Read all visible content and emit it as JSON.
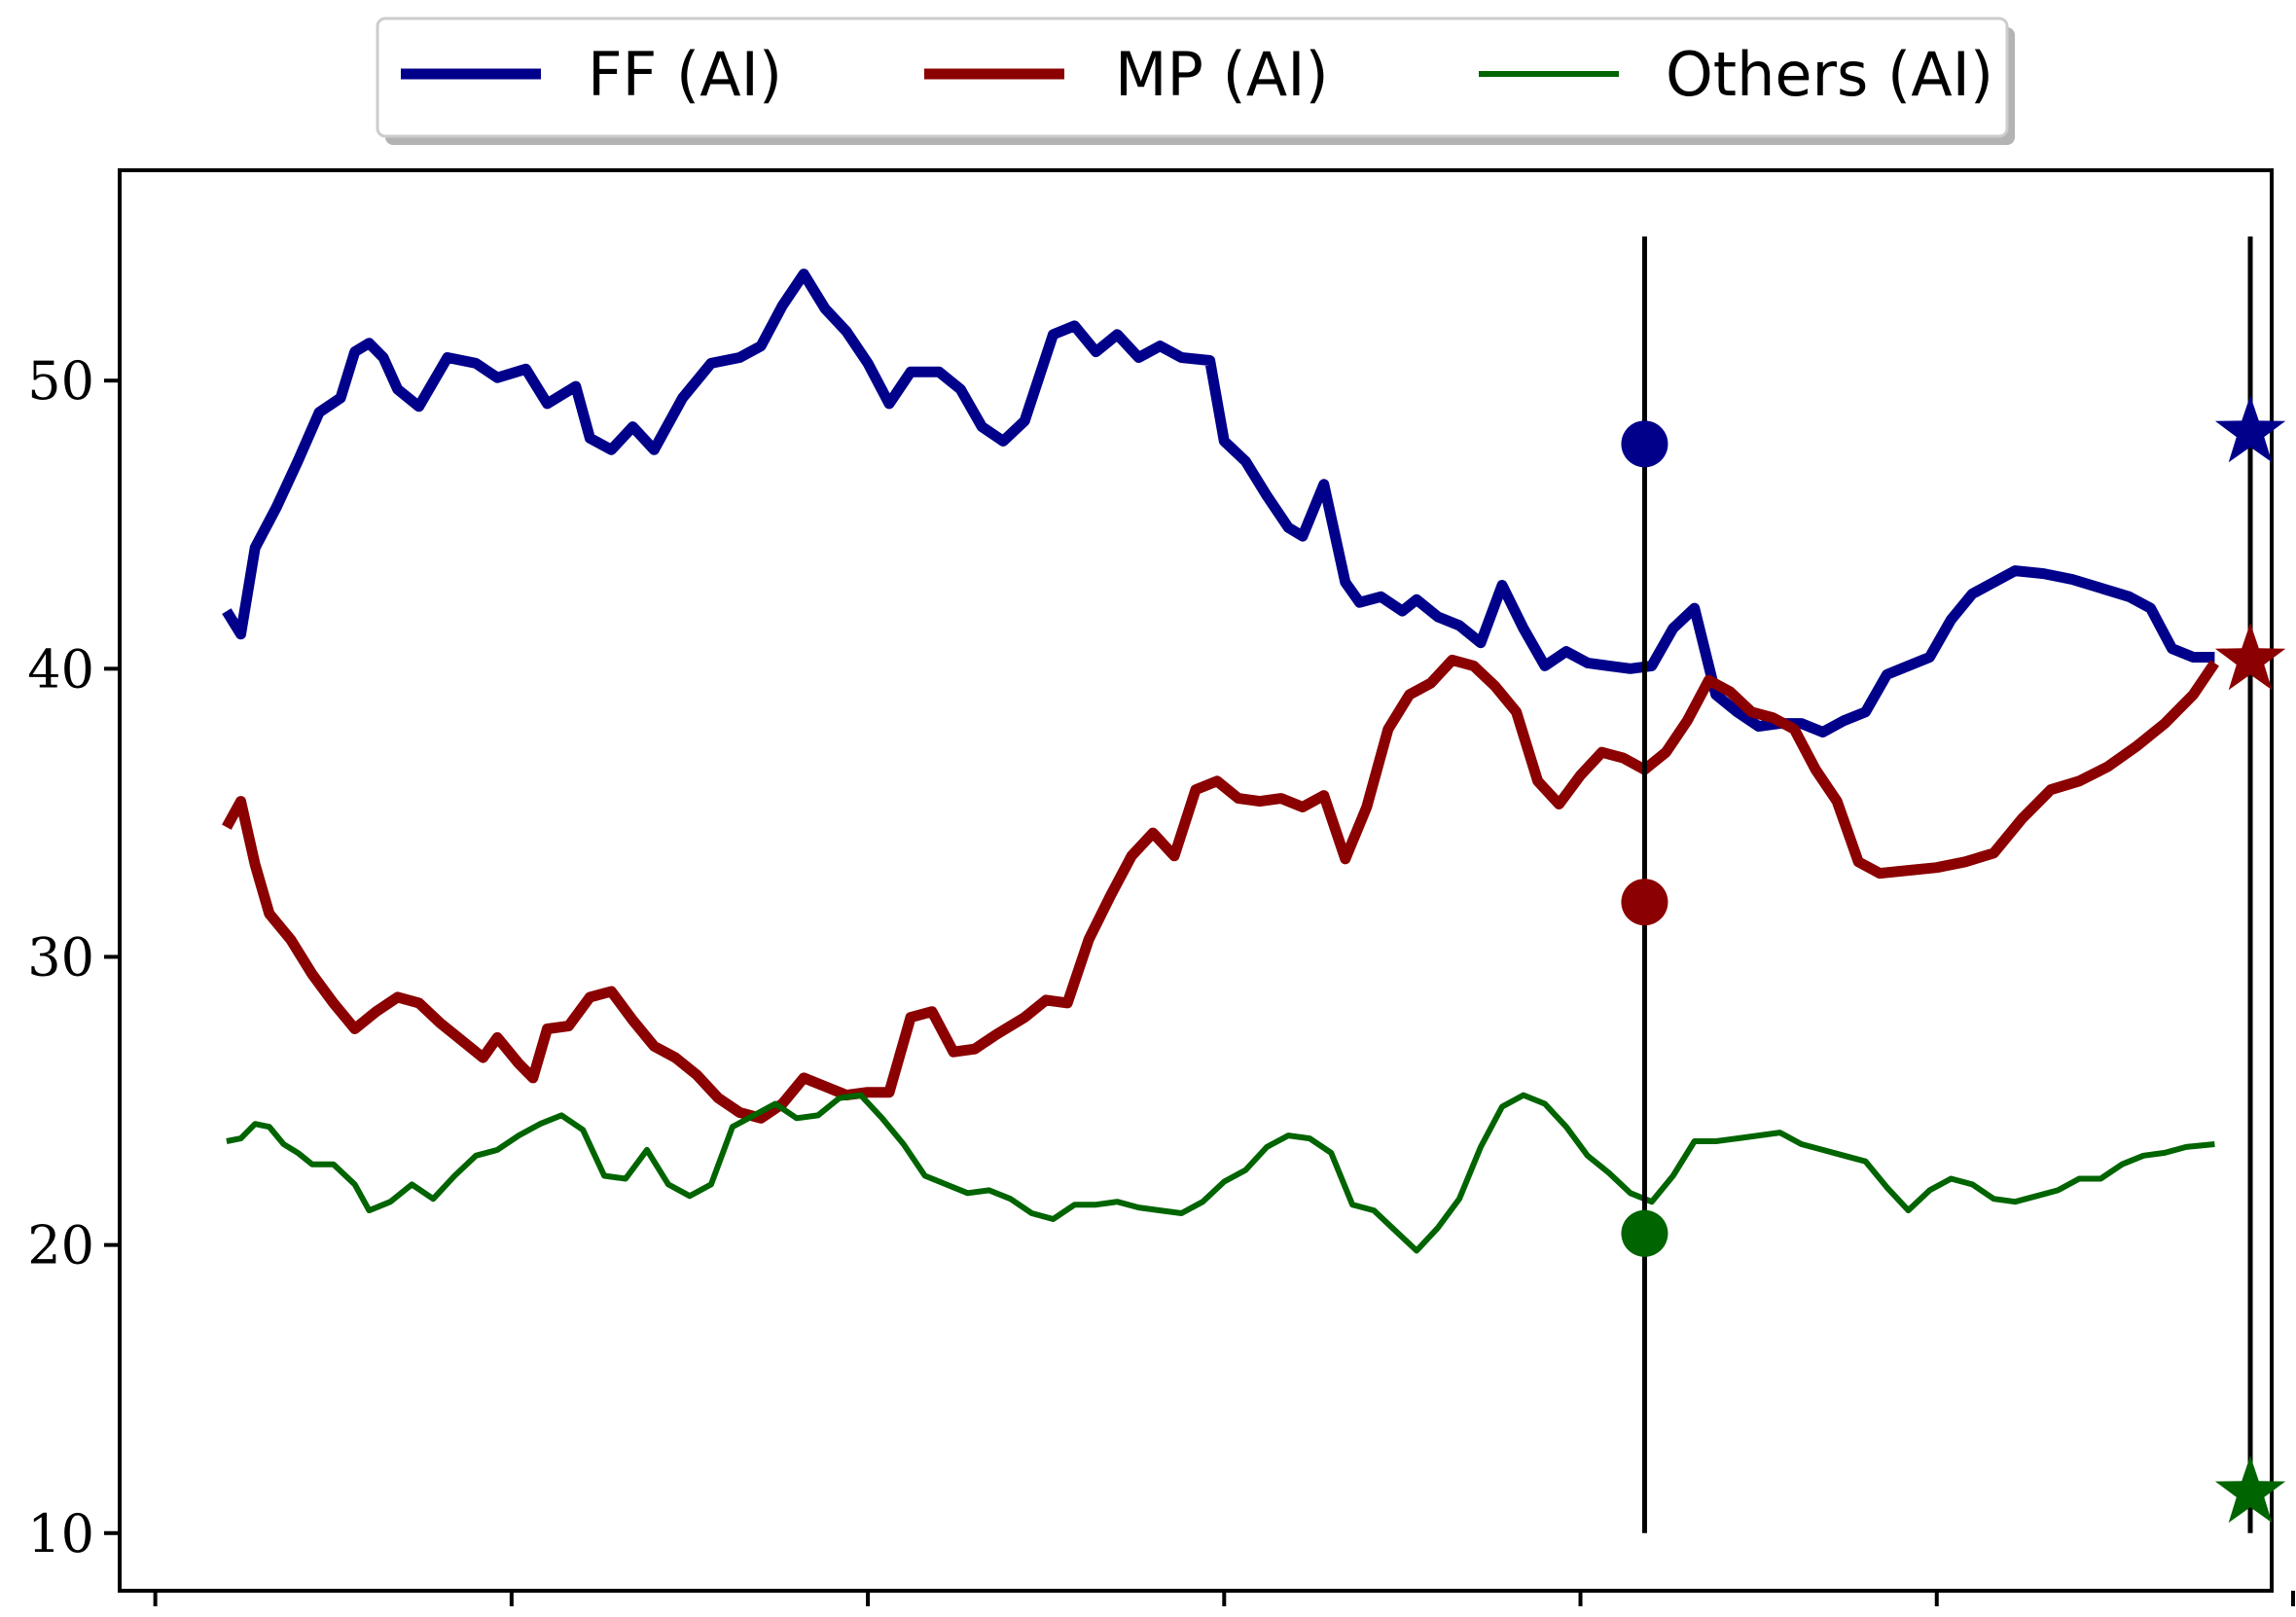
{
  "chart_data": {
    "type": "line",
    "title": "",
    "xlabel": "",
    "ylabel": "",
    "ylim": [
      8.0,
      57.3
    ],
    "xlim": [
      -15,
      287
    ],
    "x_ticks": [
      -10,
      40,
      90,
      140,
      190,
      240,
      290
    ],
    "y_ticks": [
      10,
      20,
      30,
      40,
      50
    ],
    "y_tick_labels": [
      "10",
      "20",
      "30",
      "40",
      "50"
    ],
    "grid": false,
    "legend_position": "top-center",
    "series": [
      {
        "name": "FF (AI)",
        "color": "#00008b",
        "style": "thick",
        "points": [
          [
            0,
            42.0
          ],
          [
            2,
            41.2
          ],
          [
            4,
            44.2
          ],
          [
            7,
            45.6
          ],
          [
            10,
            47.2
          ],
          [
            13,
            48.9
          ],
          [
            16,
            49.4
          ],
          [
            18,
            51.0
          ],
          [
            20,
            51.3
          ],
          [
            22,
            50.8
          ],
          [
            24,
            49.7
          ],
          [
            27,
            49.1
          ],
          [
            31,
            50.8
          ],
          [
            35,
            50.6
          ],
          [
            38,
            50.1
          ],
          [
            42,
            50.4
          ],
          [
            45,
            49.2
          ],
          [
            49,
            49.8
          ],
          [
            51,
            48.0
          ],
          [
            54,
            47.6
          ],
          [
            57,
            48.4
          ],
          [
            60,
            47.6
          ],
          [
            64,
            49.4
          ],
          [
            68,
            50.6
          ],
          [
            72,
            50.8
          ],
          [
            75,
            51.2
          ],
          [
            78,
            52.6
          ],
          [
            81,
            53.7
          ],
          [
            84,
            52.5
          ],
          [
            87,
            51.7
          ],
          [
            90,
            50.6
          ],
          [
            93,
            49.2
          ],
          [
            96,
            50.3
          ],
          [
            100,
            50.3
          ],
          [
            103,
            49.7
          ],
          [
            106,
            48.4
          ],
          [
            109,
            47.9
          ],
          [
            112,
            48.6
          ],
          [
            116,
            51.6
          ],
          [
            119,
            51.9
          ],
          [
            122,
            51.0
          ],
          [
            125,
            51.6
          ],
          [
            128,
            50.8
          ],
          [
            131,
            51.2
          ],
          [
            134,
            50.8
          ],
          [
            138,
            50.7
          ],
          [
            140,
            47.9
          ],
          [
            143,
            47.2
          ],
          [
            146,
            46.0
          ],
          [
            149,
            44.9
          ],
          [
            151,
            44.6
          ],
          [
            154,
            46.4
          ],
          [
            157,
            43.0
          ],
          [
            159,
            42.3
          ],
          [
            162,
            42.5
          ],
          [
            165,
            42.0
          ],
          [
            167,
            42.4
          ],
          [
            170,
            41.8
          ],
          [
            173,
            41.5
          ],
          [
            176,
            40.9
          ],
          [
            179,
            42.9
          ],
          [
            182,
            41.4
          ],
          [
            185,
            40.1
          ],
          [
            188,
            40.6
          ],
          [
            191,
            40.2
          ],
          [
            194,
            40.1
          ],
          [
            197,
            40.0
          ],
          [
            200,
            40.1
          ],
          [
            203,
            41.4
          ],
          [
            206,
            42.1
          ],
          [
            209,
            39.1
          ],
          [
            212,
            38.5
          ],
          [
            215,
            38.0
          ],
          [
            218,
            38.1
          ],
          [
            221,
            38.1
          ],
          [
            224,
            37.8
          ],
          [
            227,
            38.2
          ],
          [
            230,
            38.5
          ],
          [
            233,
            39.8
          ],
          [
            236,
            40.1
          ],
          [
            239,
            40.4
          ],
          [
            242,
            41.7
          ],
          [
            245,
            42.6
          ],
          [
            248,
            43.0
          ],
          [
            251,
            43.4
          ],
          [
            255,
            43.3
          ],
          [
            259,
            43.1
          ],
          [
            263,
            42.8
          ],
          [
            267,
            42.5
          ],
          [
            270,
            42.1
          ],
          [
            273,
            40.7
          ],
          [
            276,
            40.4
          ],
          [
            279,
            40.4
          ]
        ],
        "marker": {
          "shape": "circle",
          "x": 199,
          "y": 47.8
        },
        "star": {
          "shape": "star",
          "x": 284,
          "y": 48.2
        }
      },
      {
        "name": "MP (AI)",
        "color": "#8b0000",
        "style": "thick",
        "points": [
          [
            0,
            34.5
          ],
          [
            2,
            35.4
          ],
          [
            4,
            33.2
          ],
          [
            6,
            31.5
          ],
          [
            9,
            30.6
          ],
          [
            12,
            29.4
          ],
          [
            15,
            28.4
          ],
          [
            18,
            27.5
          ],
          [
            21,
            28.1
          ],
          [
            24,
            28.6
          ],
          [
            27,
            28.4
          ],
          [
            30,
            27.7
          ],
          [
            33,
            27.1
          ],
          [
            36,
            26.5
          ],
          [
            38,
            27.2
          ],
          [
            41,
            26.3
          ],
          [
            43,
            25.8
          ],
          [
            45,
            27.5
          ],
          [
            48,
            27.6
          ],
          [
            51,
            28.6
          ],
          [
            54,
            28.8
          ],
          [
            57,
            27.8
          ],
          [
            60,
            26.9
          ],
          [
            63,
            26.5
          ],
          [
            66,
            25.9
          ],
          [
            69,
            25.1
          ],
          [
            72,
            24.6
          ],
          [
            75,
            24.4
          ],
          [
            78,
            24.9
          ],
          [
            81,
            25.8
          ],
          [
            84,
            25.5
          ],
          [
            87,
            25.2
          ],
          [
            90,
            25.3
          ],
          [
            93,
            25.3
          ],
          [
            96,
            27.9
          ],
          [
            99,
            28.1
          ],
          [
            102,
            26.7
          ],
          [
            105,
            26.8
          ],
          [
            108,
            27.3
          ],
          [
            112,
            27.9
          ],
          [
            115,
            28.5
          ],
          [
            118,
            28.4
          ],
          [
            121,
            30.6
          ],
          [
            124,
            32.1
          ],
          [
            127,
            33.5
          ],
          [
            130,
            34.3
          ],
          [
            133,
            33.5
          ],
          [
            136,
            35.8
          ],
          [
            139,
            36.1
          ],
          [
            142,
            35.5
          ],
          [
            145,
            35.4
          ],
          [
            148,
            35.5
          ],
          [
            151,
            35.2
          ],
          [
            154,
            35.6
          ],
          [
            157,
            33.4
          ],
          [
            160,
            35.2
          ],
          [
            163,
            37.9
          ],
          [
            166,
            39.1
          ],
          [
            169,
            39.5
          ],
          [
            172,
            40.3
          ],
          [
            175,
            40.1
          ],
          [
            178,
            39.4
          ],
          [
            181,
            38.5
          ],
          [
            184,
            36.1
          ],
          [
            187,
            35.3
          ],
          [
            190,
            36.3
          ],
          [
            193,
            37.1
          ],
          [
            196,
            36.9
          ],
          [
            199,
            36.5
          ],
          [
            202,
            37.1
          ],
          [
            205,
            38.2
          ],
          [
            208,
            39.6
          ],
          [
            211,
            39.2
          ],
          [
            214,
            38.5
          ],
          [
            217,
            38.3
          ],
          [
            220,
            37.9
          ],
          [
            223,
            36.5
          ],
          [
            226,
            35.4
          ],
          [
            229,
            33.3
          ],
          [
            232,
            32.9
          ],
          [
            236,
            33.0
          ],
          [
            240,
            33.1
          ],
          [
            244,
            33.3
          ],
          [
            248,
            33.6
          ],
          [
            252,
            34.8
          ],
          [
            256,
            35.8
          ],
          [
            260,
            36.1
          ],
          [
            264,
            36.6
          ],
          [
            268,
            37.3
          ],
          [
            272,
            38.1
          ],
          [
            276,
            39.1
          ],
          [
            279,
            40.2
          ]
        ],
        "marker": {
          "shape": "circle",
          "x": 199,
          "y": 31.9
        },
        "star": {
          "shape": "star",
          "x": 284,
          "y": 40.3
        }
      },
      {
        "name": "Others (AI)",
        "color": "#006400",
        "style": "thin",
        "points": [
          [
            0,
            23.6
          ],
          [
            2,
            23.7
          ],
          [
            4,
            24.2
          ],
          [
            6,
            24.1
          ],
          [
            8,
            23.5
          ],
          [
            10,
            23.2
          ],
          [
            12,
            22.8
          ],
          [
            15,
            22.8
          ],
          [
            18,
            22.1
          ],
          [
            20,
            21.2
          ],
          [
            23,
            21.5
          ],
          [
            26,
            22.1
          ],
          [
            29,
            21.6
          ],
          [
            32,
            22.4
          ],
          [
            35,
            23.1
          ],
          [
            38,
            23.3
          ],
          [
            41,
            23.8
          ],
          [
            44,
            24.2
          ],
          [
            47,
            24.5
          ],
          [
            50,
            24.0
          ],
          [
            53,
            22.4
          ],
          [
            56,
            22.3
          ],
          [
            59,
            23.3
          ],
          [
            62,
            22.1
          ],
          [
            65,
            21.7
          ],
          [
            68,
            22.1
          ],
          [
            71,
            24.1
          ],
          [
            74,
            24.5
          ],
          [
            77,
            24.9
          ],
          [
            80,
            24.4
          ],
          [
            83,
            24.5
          ],
          [
            86,
            25.1
          ],
          [
            89,
            25.2
          ],
          [
            92,
            24.4
          ],
          [
            95,
            23.5
          ],
          [
            98,
            22.4
          ],
          [
            101,
            22.1
          ],
          [
            104,
            21.8
          ],
          [
            107,
            21.9
          ],
          [
            110,
            21.6
          ],
          [
            113,
            21.1
          ],
          [
            116,
            20.9
          ],
          [
            119,
            21.4
          ],
          [
            122,
            21.4
          ],
          [
            125,
            21.5
          ],
          [
            128,
            21.3
          ],
          [
            131,
            21.2
          ],
          [
            134,
            21.1
          ],
          [
            137,
            21.5
          ],
          [
            140,
            22.2
          ],
          [
            143,
            22.6
          ],
          [
            146,
            23.4
          ],
          [
            149,
            23.8
          ],
          [
            152,
            23.7
          ],
          [
            155,
            23.2
          ],
          [
            158,
            21.4
          ],
          [
            161,
            21.2
          ],
          [
            164,
            20.5
          ],
          [
            167,
            19.8
          ],
          [
            170,
            20.6
          ],
          [
            173,
            21.6
          ],
          [
            176,
            23.4
          ],
          [
            179,
            24.8
          ],
          [
            182,
            25.2
          ],
          [
            185,
            24.9
          ],
          [
            188,
            24.1
          ],
          [
            191,
            23.1
          ],
          [
            194,
            22.5
          ],
          [
            197,
            21.8
          ],
          [
            200,
            21.5
          ],
          [
            203,
            22.4
          ],
          [
            206,
            23.6
          ],
          [
            209,
            23.6
          ],
          [
            212,
            23.7
          ],
          [
            215,
            23.8
          ],
          [
            218,
            23.9
          ],
          [
            221,
            23.5
          ],
          [
            224,
            23.3
          ],
          [
            227,
            23.1
          ],
          [
            230,
            22.9
          ],
          [
            233,
            22.0
          ],
          [
            236,
            21.2
          ],
          [
            239,
            21.9
          ],
          [
            242,
            22.3
          ],
          [
            245,
            22.1
          ],
          [
            248,
            21.6
          ],
          [
            251,
            21.5
          ],
          [
            254,
            21.7
          ],
          [
            257,
            21.9
          ],
          [
            260,
            22.3
          ],
          [
            263,
            22.3
          ],
          [
            266,
            22.8
          ],
          [
            269,
            23.1
          ],
          [
            272,
            23.2
          ],
          [
            275,
            23.4
          ],
          [
            279,
            23.5
          ]
        ],
        "marker": {
          "shape": "circle",
          "x": 199,
          "y": 20.4
        },
        "star": {
          "shape": "star",
          "x": 284,
          "y": 11.4
        }
      }
    ],
    "vertical_lines": [
      {
        "x": 199,
        "ymin": 10,
        "ymax": 55
      },
      {
        "x": 284,
        "ymin": 10,
        "ymax": 55
      }
    ]
  }
}
